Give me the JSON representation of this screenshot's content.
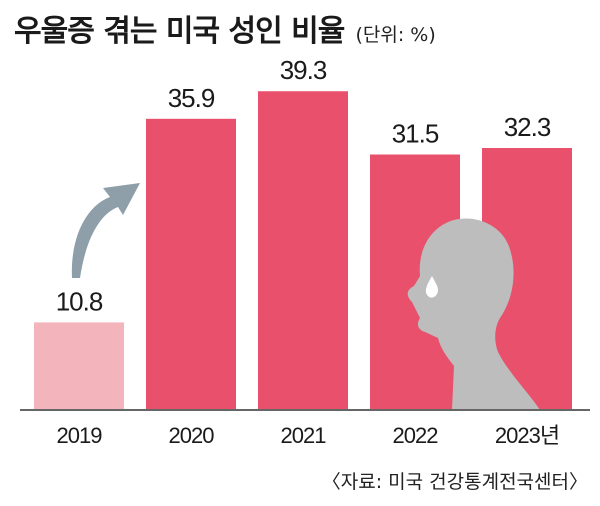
{
  "chart_data": {
    "type": "bar",
    "title": "우울증 겪는 미국 성인 비율",
    "unit_note": "(단위: %)",
    "categories": [
      "2019",
      "2020",
      "2021",
      "2022",
      "2023년"
    ],
    "values": [
      10.8,
      35.9,
      39.3,
      31.5,
      32.3
    ],
    "value_labels": [
      "10.8",
      "35.9",
      "39.3",
      "31.5",
      "32.3"
    ],
    "ylim": [
      0,
      45
    ],
    "grid": false,
    "legend": "none",
    "colors": {
      "highlight_bar": "#F4B4BB",
      "bar": "#E8506C",
      "arrow": "#8E9FAA",
      "silhouette": "#BDBDBD",
      "tear": "#FFFFFF",
      "baseline": "#666666"
    },
    "source": "〈자료: 미국 건강통계전국센터〉",
    "decorations": [
      "trend-arrow-icon",
      "sad-head-silhouette-icon"
    ]
  }
}
